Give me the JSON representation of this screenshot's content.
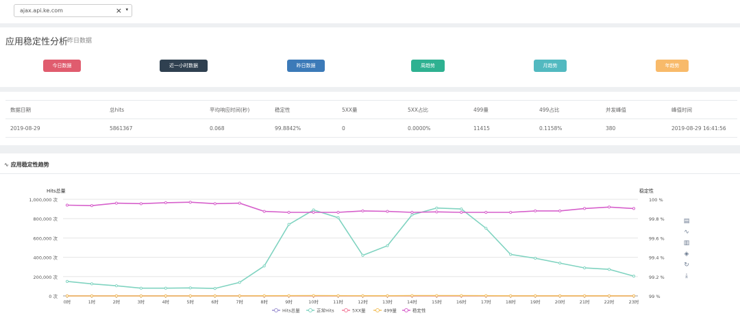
{
  "host_select": {
    "value": "ajax.api.ke.com",
    "clear": "×",
    "caret": "▾"
  },
  "panel": {
    "title": "应用稳定性分析",
    "subtitle": "昨日数据"
  },
  "buttons": [
    {
      "label": "今日数据",
      "color": "#e05c6e"
    },
    {
      "label": "近一小时数据",
      "color": "#2f4050"
    },
    {
      "label": "昨日数据",
      "color": "#3c7ab8"
    },
    {
      "label": "周趋势",
      "color": "#2eb191"
    },
    {
      "label": "月趋势",
      "color": "#52b9c0"
    },
    {
      "label": "年趋势",
      "color": "#f8ba6a"
    }
  ],
  "stats_table": {
    "headers": [
      "数据日期",
      "总hits",
      "平均响应时间(秒)",
      "稳定性",
      "5XX量",
      "5XX占比",
      "499量",
      "499占比",
      "并发峰值",
      "峰值时间"
    ],
    "rows": [
      [
        "2019-08-29",
        "5861367",
        "0.068",
        "99.8842%",
        "0",
        "0.0000%",
        "11415",
        "0.1158%",
        "380",
        "2019-08-29 16:41:56"
      ]
    ]
  },
  "trend": {
    "title": "应用稳定性趋势",
    "icon": "pulse-icon"
  },
  "toolbox_icons": [
    "data-view-icon",
    "line-chart-icon",
    "bar-chart-icon",
    "stack-icon",
    "restore-icon",
    "download-icon"
  ],
  "chart_data": {
    "type": "line",
    "y_left_label": "Hits总量",
    "y_right_label": "稳定性",
    "y_left_ticks": [
      "1,000,000 次",
      "800,000 次",
      "600,000 次",
      "400,000 次",
      "200,000 次",
      "0 次"
    ],
    "y_right_ticks": [
      "100 %",
      "99.8 %",
      "99.6 %",
      "99.4 %",
      "99.2 %",
      "99 %"
    ],
    "ylim_left": [
      0,
      1000000
    ],
    "ylim_right": [
      99,
      100
    ],
    "categories": [
      "0时",
      "1时",
      "2时",
      "3时",
      "4时",
      "5时",
      "6时",
      "7时",
      "8时",
      "9时",
      "10时",
      "11时",
      "12时",
      "13时",
      "14时",
      "15时",
      "16时",
      "17时",
      "18时",
      "19时",
      "20时",
      "21时",
      "22时",
      "23时"
    ],
    "series": [
      {
        "name": "Hits总量",
        "axis": "left",
        "color": "#9a8fd0",
        "values": [
          0,
          0,
          0,
          0,
          0,
          0,
          0,
          0,
          0,
          0,
          0,
          0,
          0,
          0,
          0,
          0,
          0,
          0,
          0,
          0,
          0,
          0,
          0,
          0
        ]
      },
      {
        "name": "正常Hits",
        "axis": "left",
        "color": "#7fd3c0",
        "values": [
          150000,
          125000,
          105000,
          80000,
          80000,
          83000,
          77000,
          140000,
          310000,
          740000,
          890000,
          810000,
          420000,
          520000,
          840000,
          910000,
          900000,
          700000,
          430000,
          390000,
          340000,
          290000,
          275000,
          205000
        ]
      },
      {
        "name": "5XX量",
        "axis": "left",
        "color": "#f27b9a",
        "values": [
          0,
          0,
          0,
          0,
          0,
          0,
          0,
          0,
          0,
          0,
          0,
          0,
          0,
          0,
          0,
          0,
          0,
          0,
          0,
          0,
          0,
          0,
          0,
          0
        ]
      },
      {
        "name": "499量",
        "axis": "left",
        "color": "#f2c05c",
        "values": [
          0,
          0,
          0,
          0,
          0,
          0,
          0,
          0,
          1500,
          2000,
          2500,
          2000,
          1200,
          1500,
          2500,
          2800,
          2600,
          1800,
          1000,
          800,
          600,
          500,
          400,
          300
        ]
      },
      {
        "name": "稳定性",
        "axis": "right",
        "color": "#d65fcb",
        "values": [
          99.94,
          99.935,
          99.96,
          99.955,
          99.965,
          99.97,
          99.955,
          99.96,
          99.875,
          99.865,
          99.865,
          99.865,
          99.88,
          99.875,
          99.865,
          99.87,
          99.865,
          99.865,
          99.865,
          99.88,
          99.88,
          99.905,
          99.92,
          99.905
        ]
      }
    ],
    "legend_position": "bottom-center",
    "grid": true
  }
}
